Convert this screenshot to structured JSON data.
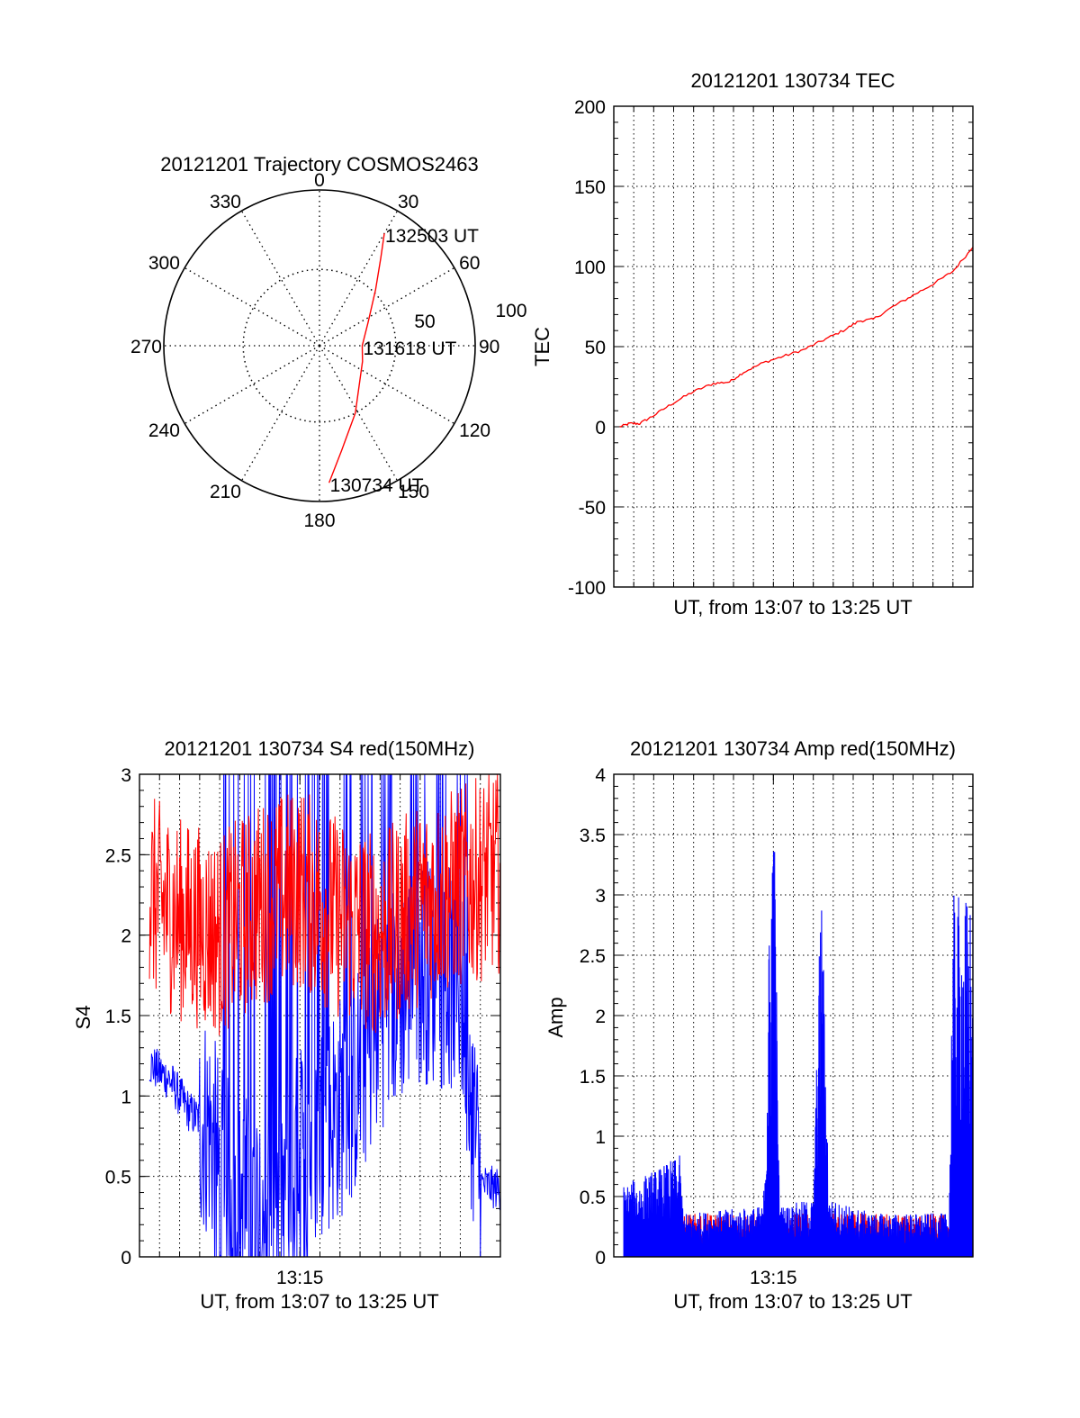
{
  "colors": {
    "red": "#ff0000",
    "blue": "#0000ff",
    "axis": "#000000",
    "grid": "#000000"
  },
  "chart_data": [
    {
      "id": "trajectory",
      "type": "polar-trajectory",
      "title": "20121201 Trajectory COSMOS2463",
      "azimuth_labels": [
        "0",
        "30",
        "60",
        "90",
        "120",
        "150",
        "180",
        "210",
        "240",
        "270",
        "300",
        "330"
      ],
      "radial_labels": [
        "50",
        "100"
      ],
      "radial_max": 100,
      "grid": "dotted",
      "series": [
        {
          "color": "red",
          "points": [
            {
              "az": 176,
              "r": 90
            },
            {
              "az": 168,
              "r": 70
            },
            {
              "az": 152,
              "r": 50
            },
            {
              "az": 110,
              "r": 30
            },
            {
              "az": 90,
              "r": 28
            },
            {
              "az": 65,
              "r": 35
            },
            {
              "az": 45,
              "r": 52
            },
            {
              "az": 35,
              "r": 70
            },
            {
              "az": 30,
              "r": 85
            }
          ]
        }
      ],
      "annotations": [
        {
          "text": "132503 UT",
          "az": 30,
          "r": 85
        },
        {
          "text": "131618 UT",
          "az": 90,
          "r": 28
        },
        {
          "text": "130734 UT",
          "az": 176,
          "r": 90
        }
      ]
    },
    {
      "id": "tec",
      "type": "line",
      "title": "20121201 130734 TEC",
      "xlabel": "UT, from 13:07 to 13:25 UT",
      "ylabel": "TEC",
      "xlim": [
        0,
        18
      ],
      "ylim": [
        -100,
        200
      ],
      "yticks": [
        "-100",
        "-50",
        "0",
        "50",
        "100",
        "150",
        "200"
      ],
      "grid": true,
      "series": [
        {
          "color": "red",
          "x": [
            0.3,
            0.8,
            1.3,
            2.0,
            3.0,
            4.0,
            5.0,
            5.8,
            6.5,
            7.5,
            8.5,
            9.5,
            10.5,
            11.5,
            12.3,
            13.0,
            14.0,
            15.0,
            16.0,
            17.0,
            18.0
          ],
          "y": [
            0,
            2,
            2,
            7,
            15,
            22,
            27,
            28,
            34,
            40,
            44,
            48,
            54,
            60,
            66,
            67,
            75,
            82,
            89,
            97,
            112
          ]
        }
      ]
    },
    {
      "id": "s4",
      "type": "line",
      "title": "20121201 130734 S4 red(150MHz)",
      "xlabel": "UT, from 13:07 to 13:25 UT",
      "ylabel": "S4",
      "xticks": [
        {
          "value": 8,
          "label": "13:15"
        }
      ],
      "xlim": [
        0,
        18
      ],
      "ylim": [
        0,
        3
      ],
      "yticks": [
        "0",
        "0.5",
        "1",
        "1.5",
        "2",
        "2.5",
        "3"
      ],
      "grid": true,
      "series": [
        {
          "color": "blue",
          "profile": [
            [
              0,
              1.6
            ],
            [
              0.5,
              1.2
            ],
            [
              1.5,
              1.1
            ],
            [
              2.5,
              0.9
            ],
            [
              3.5,
              0.8
            ],
            [
              4.0,
              0.5
            ],
            [
              5.0,
              0.3
            ],
            [
              7.0,
              0.4
            ],
            [
              9.0,
              0.8
            ],
            [
              10.5,
              1.0
            ],
            [
              12.0,
              1.5
            ],
            [
              14.0,
              1.8
            ],
            [
              16.0,
              1.7
            ],
            [
              17.0,
              0.45
            ],
            [
              18.0,
              0.42
            ]
          ],
          "spread": 0.9
        },
        {
          "color": "red",
          "profile": [
            [
              0,
              2.3
            ],
            [
              2.0,
              2.1
            ],
            [
              4.0,
              2.0
            ],
            [
              6.0,
              2.2
            ],
            [
              8.0,
              2.3
            ],
            [
              10.0,
              2.1
            ],
            [
              12.0,
              2.0
            ],
            [
              14.0,
              2.2
            ],
            [
              16.0,
              2.3
            ],
            [
              18.0,
              2.4
            ]
          ],
          "spread": 0.8
        }
      ]
    },
    {
      "id": "amp",
      "type": "line",
      "title": "20121201 130734 Amp red(150MHz)",
      "xlabel": "UT, from 13:07 to 13:25 UT",
      "ylabel": "Amp",
      "xticks": [
        {
          "value": 8,
          "label": "13:15"
        }
      ],
      "xlim": [
        0,
        18
      ],
      "ylim": [
        0,
        4
      ],
      "yticks": [
        "0",
        "0.5",
        "1",
        "1.5",
        "2",
        "2.5",
        "3",
        "3.5",
        "4"
      ],
      "grid": true,
      "series": [
        {
          "color": "red",
          "profile": [
            [
              3.3,
              0.3
            ],
            [
              16.5,
              0.3
            ],
            [
              17.0,
              0.15
            ],
            [
              18.0,
              0.15
            ]
          ],
          "spread": 0.1
        },
        {
          "color": "blue",
          "profile": [
            [
              0.5,
              0.5
            ],
            [
              2.0,
              0.6
            ],
            [
              3.3,
              0.7
            ],
            [
              3.5,
              0.3
            ],
            [
              7.5,
              0.35
            ],
            [
              8.0,
              3.7
            ],
            [
              8.3,
              0.35
            ],
            [
              10.0,
              0.4
            ],
            [
              10.4,
              2.7
            ],
            [
              10.8,
              0.4
            ],
            [
              13.0,
              0.3
            ],
            [
              16.8,
              0.3
            ],
            [
              17.0,
              2.5
            ],
            [
              18.0,
              2.5
            ]
          ],
          "spread": 0.4
        }
      ]
    }
  ]
}
